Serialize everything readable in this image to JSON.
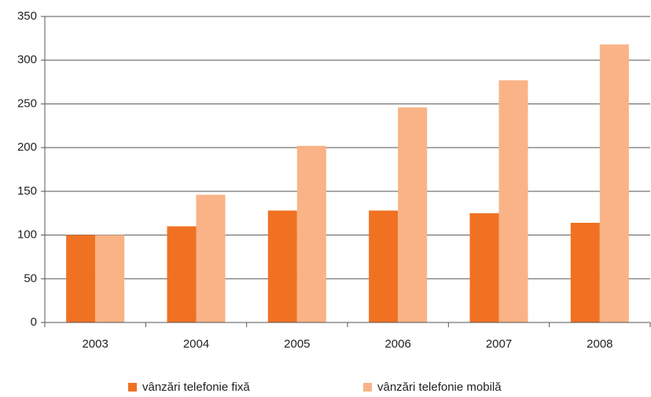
{
  "chart_data": {
    "type": "bar",
    "categories": [
      "2003",
      "2004",
      "2005",
      "2006",
      "2007",
      "2008"
    ],
    "series": [
      {
        "name": "vânzări telefonie fixă",
        "color": "#f07122",
        "values": [
          100,
          110,
          128,
          128,
          125,
          114
        ]
      },
      {
        "name": "vânzări telefonie mobilă",
        "color": "#f9b386",
        "values": [
          100,
          146,
          202,
          246,
          277,
          318
        ]
      }
    ],
    "ylim": [
      0,
      350
    ],
    "yticks": [
      0,
      50,
      100,
      150,
      200,
      250,
      300,
      350
    ],
    "grid": true,
    "legend": "bottom"
  }
}
